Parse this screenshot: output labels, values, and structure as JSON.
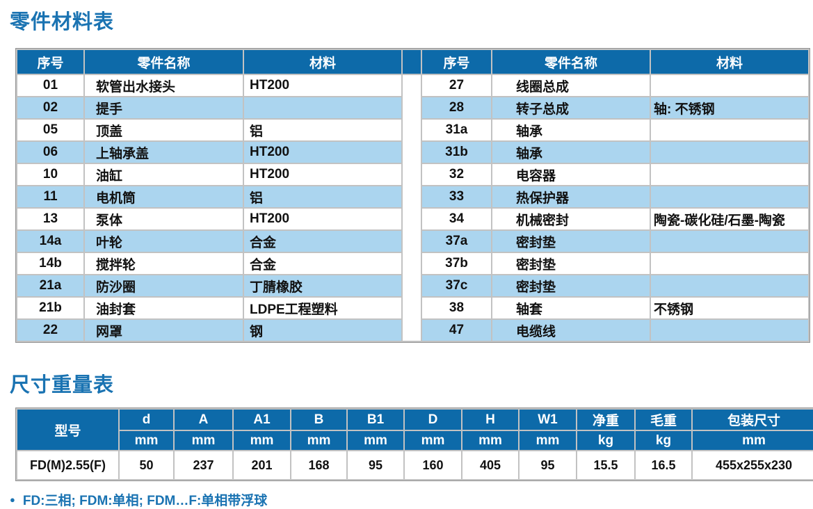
{
  "page": {
    "parts_section_title": "零件材料表",
    "dims_section_title": "尺寸重量表",
    "footnote_bullet": "●",
    "footnote_text": "FD:三相; FDM:单相; FDM…F:单相带浮球"
  },
  "colors": {
    "header_blue": "#0d6aa9",
    "stripe_blue": "#abd5ef",
    "title_blue": "#1a73b2",
    "grid_gray": "#c2c2c2"
  },
  "parts_table": {
    "headers": {
      "no": "序号",
      "name": "零件名称",
      "material": "材料"
    },
    "left_rows": [
      {
        "no": "01",
        "name": "软管出水接头",
        "material": "HT200"
      },
      {
        "no": "02",
        "name": "提手",
        "material": ""
      },
      {
        "no": "05",
        "name": "顶盖",
        "material": "铝"
      },
      {
        "no": "06",
        "name": "上轴承盖",
        "material": "HT200"
      },
      {
        "no": "10",
        "name": "油缸",
        "material": "HT200"
      },
      {
        "no": "11",
        "name": "电机筒",
        "material": "铝"
      },
      {
        "no": "13",
        "name": "泵体",
        "material": "HT200"
      },
      {
        "no": "14a",
        "name": "叶轮",
        "material": "合金"
      },
      {
        "no": "14b",
        "name": "搅拌轮",
        "material": "合金"
      },
      {
        "no": "21a",
        "name": "防沙圈",
        "material": "丁腈橡胶"
      },
      {
        "no": "21b",
        "name": "油封套",
        "material": "LDPE工程塑料"
      },
      {
        "no": "22",
        "name": "网罩",
        "material": "钢"
      }
    ],
    "right_rows": [
      {
        "no": "27",
        "name": "线圈总成",
        "material": ""
      },
      {
        "no": "28",
        "name": "转子总成",
        "material": "轴: 不锈钢"
      },
      {
        "no": "31a",
        "name": "轴承",
        "material": ""
      },
      {
        "no": "31b",
        "name": "轴承",
        "material": ""
      },
      {
        "no": "32",
        "name": "电容器",
        "material": ""
      },
      {
        "no": "33",
        "name": "热保护器",
        "material": ""
      },
      {
        "no": "34",
        "name": "机械密封",
        "material": "陶瓷-碳化硅/石墨-陶瓷"
      },
      {
        "no": "37a",
        "name": "密封垫",
        "material": ""
      },
      {
        "no": "37b",
        "name": "密封垫",
        "material": ""
      },
      {
        "no": "37c",
        "name": "密封垫",
        "material": ""
      },
      {
        "no": "38",
        "name": "轴套",
        "material": "不锈钢"
      },
      {
        "no": "47",
        "name": "电缆线",
        "material": ""
      }
    ]
  },
  "dims_table": {
    "model_header": "型号",
    "columns": [
      {
        "label": "d",
        "unit": "mm"
      },
      {
        "label": "A",
        "unit": "mm"
      },
      {
        "label": "A1",
        "unit": "mm"
      },
      {
        "label": "B",
        "unit": "mm"
      },
      {
        "label": "B1",
        "unit": "mm"
      },
      {
        "label": "D",
        "unit": "mm"
      },
      {
        "label": "H",
        "unit": "mm"
      },
      {
        "label": "W1",
        "unit": "mm"
      },
      {
        "label": "净重",
        "unit": "kg"
      },
      {
        "label": "毛重",
        "unit": "kg"
      },
      {
        "label": "包装尺寸",
        "unit": "mm"
      }
    ],
    "rows": [
      {
        "model": "FD(M)2.55(F)",
        "values": [
          "50",
          "237",
          "201",
          "168",
          "95",
          "160",
          "405",
          "95",
          "15.5",
          "16.5",
          "455x255x230"
        ]
      }
    ]
  }
}
